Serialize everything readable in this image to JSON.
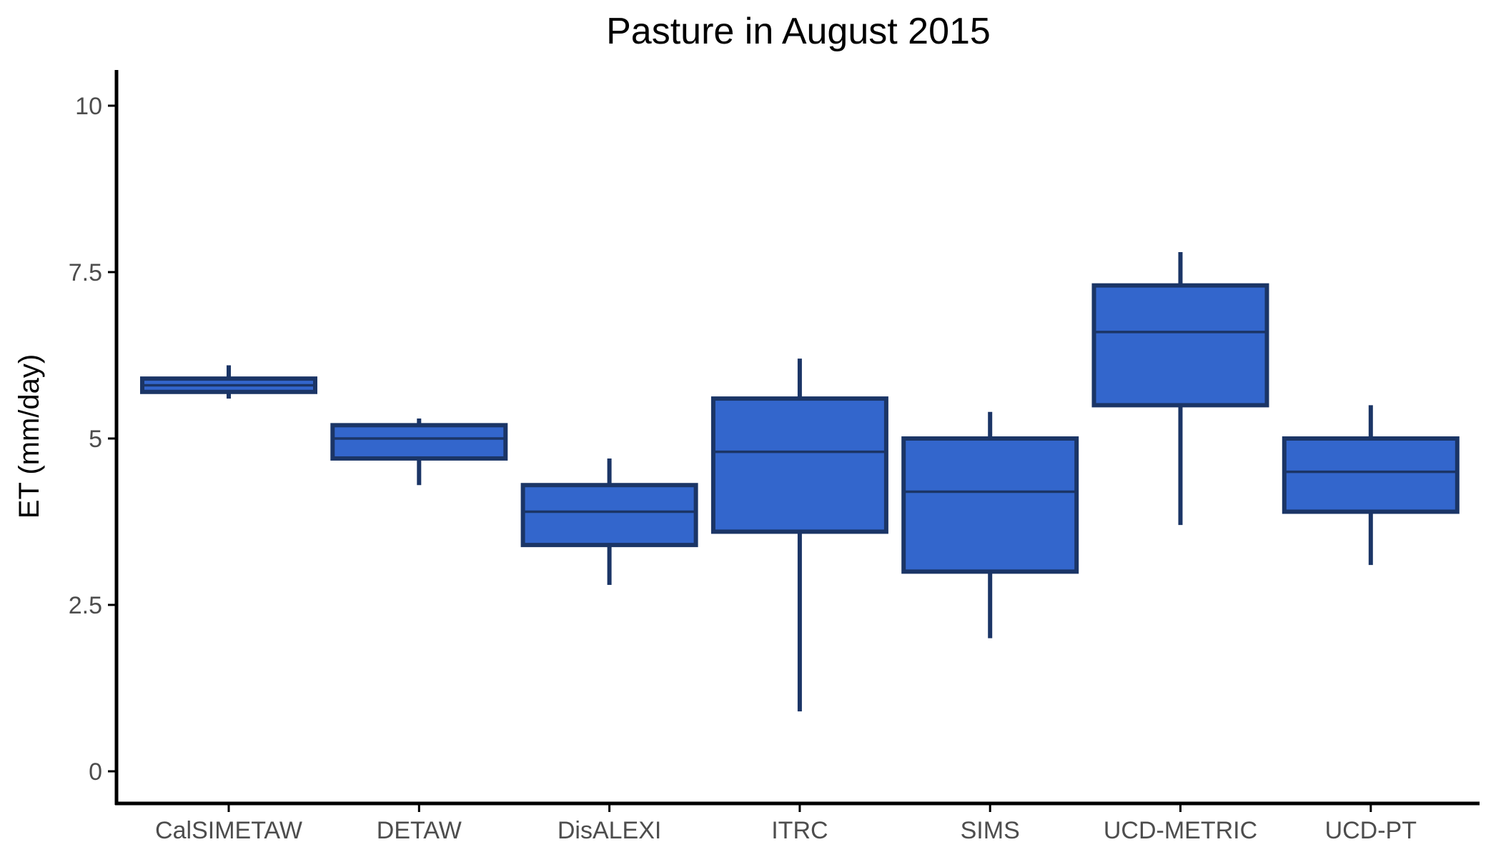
{
  "chart_data": {
    "type": "boxplot",
    "title": "Pasture in August 2015",
    "xlabel": "",
    "ylabel": "ET (mm/day)",
    "ylim": [
      -0.5,
      10.5
    ],
    "yticks": [
      0,
      2.5,
      5,
      7.5,
      10
    ],
    "ytick_labels": [
      "0",
      "2.5",
      "5",
      "7.5",
      "10"
    ],
    "grid": false,
    "legend": "none",
    "colors": {
      "fill": "#3366CC",
      "stroke": "#1B3566",
      "axis": "#000000",
      "tick_label": "#4D4D4D"
    },
    "categories": [
      "CalSIMETAW",
      "DETAW",
      "DisALEXI",
      "ITRC",
      "SIMS",
      "UCD-METRIC",
      "UCD-PT"
    ],
    "boxes": [
      {
        "category": "CalSIMETAW",
        "whisker_low": 5.6,
        "q1": 5.7,
        "median": 5.8,
        "q3": 5.9,
        "whisker_high": 6.1
      },
      {
        "category": "DETAW",
        "whisker_low": 4.3,
        "q1": 4.7,
        "median": 5.0,
        "q3": 5.2,
        "whisker_high": 5.3
      },
      {
        "category": "DisALEXI",
        "whisker_low": 2.8,
        "q1": 3.4,
        "median": 3.9,
        "q3": 4.3,
        "whisker_high": 4.7
      },
      {
        "category": "ITRC",
        "whisker_low": 0.9,
        "q1": 3.6,
        "median": 4.8,
        "q3": 5.6,
        "whisker_high": 6.2
      },
      {
        "category": "SIMS",
        "whisker_low": 2.0,
        "q1": 3.0,
        "median": 4.2,
        "q3": 5.0,
        "whisker_high": 5.4
      },
      {
        "category": "UCD-METRIC",
        "whisker_low": 3.7,
        "q1": 5.5,
        "median": 6.6,
        "q3": 7.3,
        "whisker_high": 7.8
      },
      {
        "category": "UCD-PT",
        "whisker_low": 3.1,
        "q1": 3.9,
        "median": 4.5,
        "q3": 5.0,
        "whisker_high": 5.5
      }
    ]
  }
}
